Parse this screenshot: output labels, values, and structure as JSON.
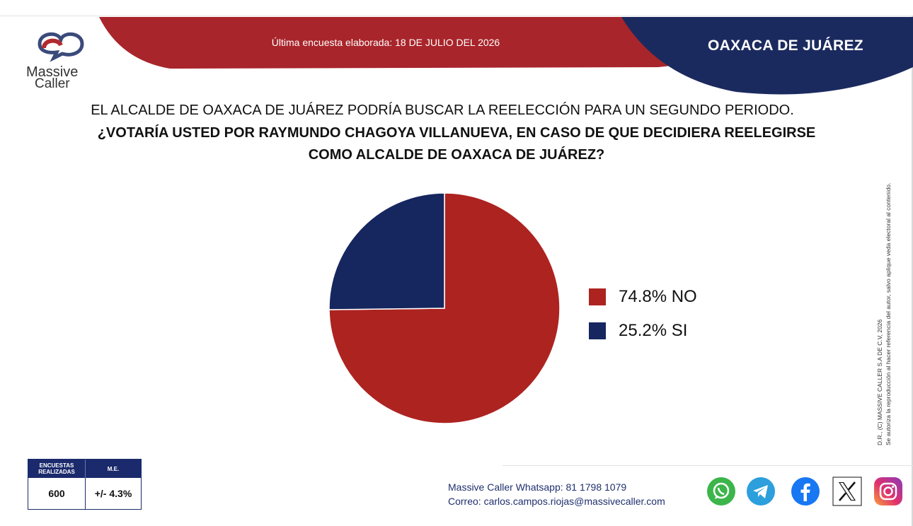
{
  "header": {
    "band_text": "Última encuesta elaborada: 18 DE JULIO DEL 2026",
    "region": "OAXACA DE JUÁREZ",
    "band_color": "#a8252b",
    "region_color": "#1b2a5e"
  },
  "logo": {
    "word1": "Massive",
    "word2": "Caller",
    "tagline": "MASSIVE CALLER"
  },
  "question": {
    "line1": "EL ALCALDE DE OAXACA DE JUÁREZ PODRÍA BUSCAR LA REELECCIÓN PARA UN SEGUNDO PERIODO.",
    "line2": "¿VOTARÍA USTED POR RAYMUNDO CHAGOYA VILLANUEVA, EN CASO DE QUE DECIDIERA REELEGIRSE",
    "line3": "COMO ALCALDE DE OAXACA DE JUÁREZ?"
  },
  "side_note": {
    "line1": "D.R., (C) MASSIVE CALLER S.A DE C.V, 2026",
    "line2": "Se autoriza la reproducción al hacer referencia del autor, salvo aplique veda electoral al contenido."
  },
  "chart_data": {
    "type": "pie",
    "slices": [
      {
        "label": "NO",
        "value": 74.8,
        "color": "#ad2320",
        "legend": "74.8% NO"
      },
      {
        "label": "SI",
        "value": 25.2,
        "color": "#16265f",
        "legend": "25.2% SI"
      }
    ],
    "legend_position": "right"
  },
  "stats": {
    "header_left": "ENCUESTAS REALIZADAS",
    "header_right": "M.E.",
    "value_left": "600",
    "value_right": "+/- 4.3%"
  },
  "contact": {
    "whatsapp_label": "Massive Caller Whatsapp:",
    "whatsapp_number": "81 1798 1079",
    "email_label": "Correo:",
    "email": "carlos.campos.riojas@massivecaller.com"
  },
  "social_icons": [
    "whatsapp-icon",
    "telegram-icon",
    "facebook-icon",
    "x-icon",
    "instagram-icon"
  ]
}
